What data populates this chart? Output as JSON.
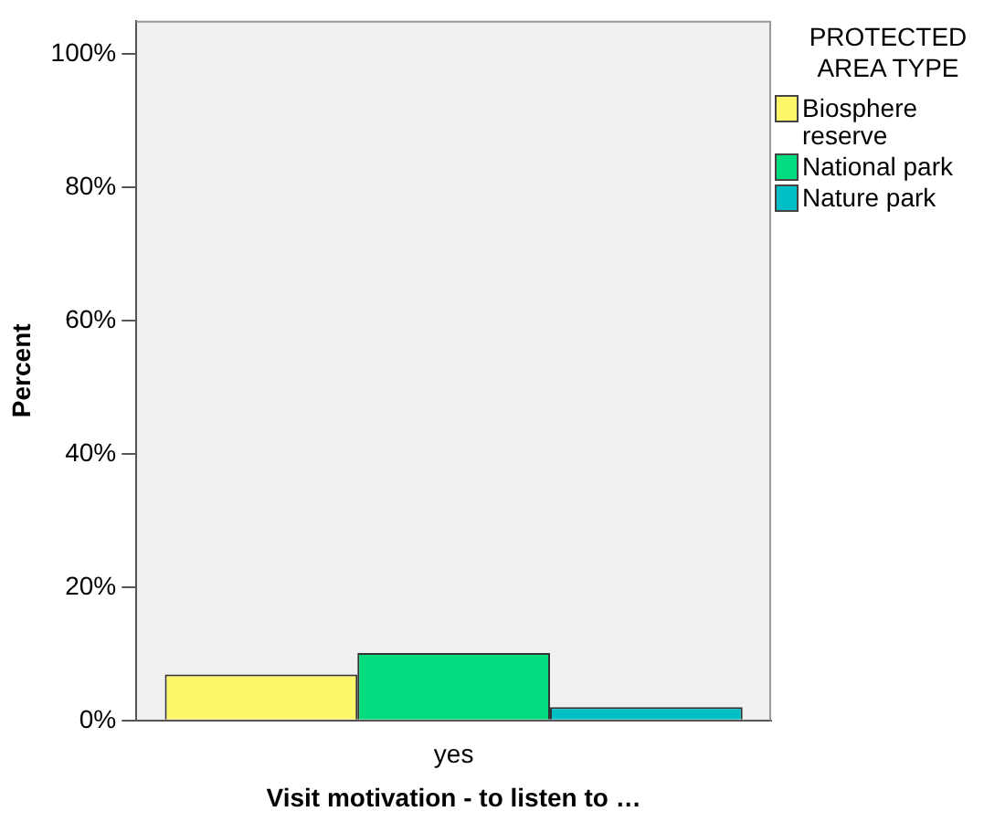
{
  "chart_data": {
    "type": "bar",
    "xlabel": "Visit motivation - to listen to …",
    "ylabel": "Percent",
    "legend_title": "PROTECTED AREA TYPE",
    "categories": [
      "yes"
    ],
    "series": [
      {
        "name": "Biosphere reserve",
        "color": "#fbf66a",
        "values": [
          6.9
        ]
      },
      {
        "name": "National park",
        "color": "#00dc7e",
        "values": [
          10.1
        ]
      },
      {
        "name": "Nature park",
        "color": "#00c0c6",
        "values": [
          2.0
        ]
      }
    ],
    "ylim": [
      0,
      105
    ],
    "yticks": [
      {
        "value": 0,
        "label": "0%"
      },
      {
        "value": 20,
        "label": "20%"
      },
      {
        "value": 40,
        "label": "40%"
      },
      {
        "value": 60,
        "label": "60%"
      },
      {
        "value": 80,
        "label": "80%"
      },
      {
        "value": 100,
        "label": "100%"
      }
    ],
    "grid": false,
    "legend": "right"
  }
}
